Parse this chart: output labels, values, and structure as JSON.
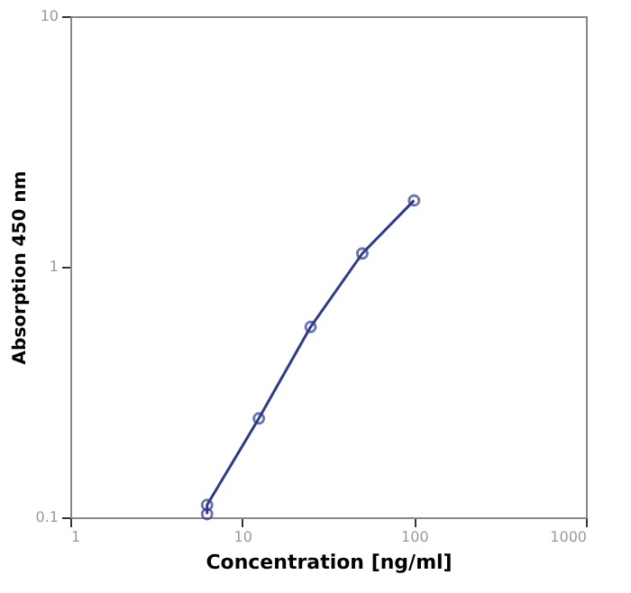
{
  "chart_data": {
    "type": "line",
    "xlabel": "Concentration [ng/ml]",
    "ylabel": "Absorption 450 nm",
    "x": [
      6.25,
      6.25,
      12.5,
      25,
      50,
      100
    ],
    "series": [
      {
        "color": "#2e3a8c",
        "values": [
          0.103,
          0.112,
          0.248,
          0.575,
          1.13,
          1.84
        ]
      }
    ],
    "log": "xy",
    "xlim": [
      1,
      1000
    ],
    "xticks": [
      1,
      10,
      100,
      1000
    ],
    "ylim": [
      0.1,
      10
    ],
    "yticks": [
      0.1,
      1,
      10
    ],
    "grid": false,
    "legend": false,
    "marker": "circle",
    "line_style": "solid"
  }
}
